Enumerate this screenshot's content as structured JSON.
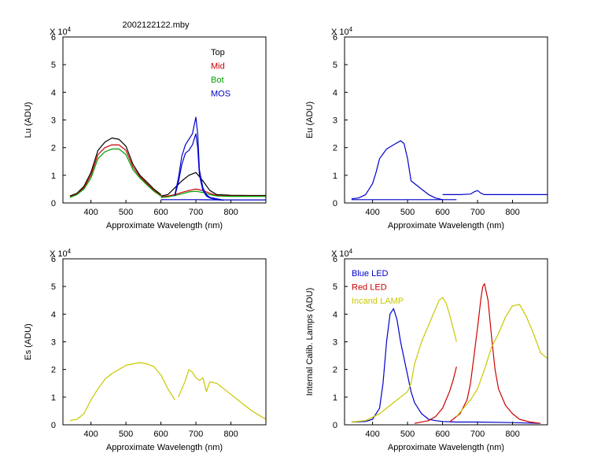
{
  "figure_title": "2002122122.mby",
  "chart_data": [
    {
      "id": "lu",
      "type": "line",
      "title": "2002122122.mby",
      "xlabel": "Approximate Wavelength (nm)",
      "ylabel": "Lu (ADU)",
      "y_multiplier": "X 10",
      "y_multiplier_exp": "4",
      "xlim": [
        320,
        900
      ],
      "ylim": [
        0,
        6
      ],
      "xticks": [
        400,
        500,
        600,
        700,
        800
      ],
      "yticks": [
        0,
        1,
        2,
        3,
        4,
        5,
        6
      ],
      "legend_position": "top-right",
      "series": [
        {
          "name": "Top",
          "color": "#000000",
          "in_legend": true,
          "x": [
            340,
            360,
            380,
            400,
            420,
            440,
            460,
            480,
            500,
            520,
            540,
            560,
            580,
            600
          ],
          "y": [
            0.25,
            0.35,
            0.6,
            1.1,
            1.9,
            2.2,
            2.35,
            2.3,
            2.05,
            1.4,
            1.0,
            0.75,
            0.5,
            0.3
          ]
        },
        {
          "name": "Top",
          "color": "#000000",
          "in_legend": false,
          "x": [
            600,
            620,
            640,
            660,
            680,
            700,
            720,
            740,
            760,
            800,
            850,
            900
          ],
          "y": [
            0.25,
            0.3,
            0.55,
            0.8,
            1.0,
            1.1,
            0.8,
            0.45,
            0.3,
            0.28,
            0.27,
            0.27
          ]
        },
        {
          "name": "Mid",
          "color": "#cc0000",
          "in_legend": true,
          "x": [
            340,
            360,
            380,
            400,
            420,
            440,
            460,
            480,
            500,
            520,
            540,
            560,
            580,
            600
          ],
          "y": [
            0.22,
            0.32,
            0.55,
            1.0,
            1.75,
            2.0,
            2.1,
            2.1,
            1.9,
            1.3,
            0.95,
            0.7,
            0.45,
            0.28
          ]
        },
        {
          "name": "Mid",
          "color": "#cc0000",
          "in_legend": false,
          "x": [
            600,
            620,
            640,
            660,
            680,
            700,
            720,
            740,
            760,
            800,
            850,
            900
          ],
          "y": [
            0.22,
            0.25,
            0.3,
            0.38,
            0.45,
            0.5,
            0.45,
            0.35,
            0.27,
            0.25,
            0.25,
            0.25
          ]
        },
        {
          "name": "Bot",
          "color": "#00a000",
          "in_legend": true,
          "x": [
            340,
            360,
            380,
            400,
            420,
            440,
            460,
            480,
            500,
            520,
            540,
            560,
            580,
            600
          ],
          "y": [
            0.2,
            0.3,
            0.5,
            0.9,
            1.6,
            1.85,
            1.95,
            1.95,
            1.75,
            1.2,
            0.9,
            0.65,
            0.42,
            0.25
          ]
        },
        {
          "name": "Bot",
          "color": "#00a000",
          "in_legend": false,
          "x": [
            600,
            620,
            640,
            660,
            680,
            700,
            720,
            740,
            760,
            800,
            850,
            900
          ],
          "y": [
            0.2,
            0.22,
            0.27,
            0.33,
            0.4,
            0.42,
            0.38,
            0.3,
            0.25,
            0.24,
            0.24,
            0.24
          ]
        },
        {
          "name": "MOS",
          "color": "#0000cc",
          "in_legend": true,
          "x": [
            640,
            650,
            660,
            670,
            680,
            690,
            695,
            700,
            705,
            710,
            720,
            730,
            740,
            760,
            780
          ],
          "y": [
            0.3,
            0.9,
            1.7,
            2.1,
            2.3,
            2.5,
            2.8,
            3.1,
            2.5,
            1.2,
            0.55,
            0.3,
            0.2,
            0.15,
            0.1
          ]
        },
        {
          "name": "MOS",
          "color": "#0000cc",
          "in_legend": false,
          "x": [
            640,
            650,
            660,
            670,
            680,
            690,
            695,
            700,
            705,
            710,
            720,
            730,
            740,
            760,
            780
          ],
          "y": [
            0.25,
            0.75,
            1.4,
            1.8,
            1.9,
            2.1,
            2.3,
            2.5,
            2.0,
            1.0,
            0.45,
            0.25,
            0.18,
            0.12,
            0.1
          ]
        },
        {
          "name": "MOS",
          "color": "#0000cc",
          "in_legend": false,
          "x": [
            600,
            700,
            780,
            900
          ],
          "y": [
            0.12,
            0.12,
            0.11,
            0.11
          ]
        }
      ]
    },
    {
      "id": "eu",
      "type": "line",
      "title": "",
      "xlabel": "Approximate Wavelength (nm)",
      "ylabel": "Eu  (ADU)",
      "y_multiplier": "X 10",
      "y_multiplier_exp": "4",
      "xlim": [
        320,
        900
      ],
      "ylim": [
        0,
        6
      ],
      "xticks": [
        400,
        500,
        600,
        700,
        800
      ],
      "yticks": [
        0,
        1,
        2,
        3,
        4,
        5,
        6
      ],
      "series": [
        {
          "name": "Eu",
          "color": "#0000cc",
          "x": [
            340,
            360,
            380,
            400,
            410,
            420,
            440,
            460,
            480,
            490,
            500,
            510,
            520,
            540,
            560,
            580,
            600
          ],
          "y": [
            0.15,
            0.18,
            0.3,
            0.7,
            1.1,
            1.6,
            1.95,
            2.1,
            2.25,
            2.15,
            1.6,
            0.8,
            0.7,
            0.5,
            0.3,
            0.18,
            0.12
          ]
        },
        {
          "name": "Eu",
          "color": "#0000cc",
          "x": [
            340,
            640
          ],
          "y": [
            0.12,
            0.12
          ]
        },
        {
          "name": "Eu",
          "color": "#0000cc",
          "x": [
            600,
            650,
            680,
            690,
            700,
            710,
            720,
            760,
            800,
            900
          ],
          "y": [
            0.3,
            0.3,
            0.32,
            0.4,
            0.45,
            0.35,
            0.3,
            0.3,
            0.3,
            0.3
          ]
        }
      ]
    },
    {
      "id": "es",
      "type": "line",
      "title": "",
      "xlabel": "Approximate Wavelength (nm)",
      "ylabel": "Es  (ADU)",
      "y_multiplier": "X 10",
      "y_multiplier_exp": "4",
      "xlim": [
        320,
        900
      ],
      "ylim": [
        0,
        6
      ],
      "xticks": [
        400,
        500,
        600,
        700,
        800
      ],
      "yticks": [
        0,
        1,
        2,
        3,
        4,
        5,
        6
      ],
      "series": [
        {
          "name": "Es",
          "color": "#c8c800",
          "x": [
            340,
            360,
            380,
            400,
            420,
            440,
            460,
            480,
            500,
            520,
            540,
            560,
            580,
            600,
            620,
            640
          ],
          "y": [
            0.15,
            0.2,
            0.4,
            0.9,
            1.3,
            1.65,
            1.85,
            2.0,
            2.15,
            2.2,
            2.25,
            2.2,
            2.1,
            1.8,
            1.3,
            0.9
          ]
        },
        {
          "name": "Es",
          "color": "#c8c800",
          "x": [
            650,
            670,
            680,
            690,
            700,
            710,
            720,
            730,
            740,
            760,
            780,
            800,
            820,
            840,
            860,
            880,
            900
          ],
          "y": [
            1.0,
            1.6,
            2.0,
            1.9,
            1.7,
            1.6,
            1.7,
            1.2,
            1.55,
            1.5,
            1.3,
            1.1,
            0.9,
            0.7,
            0.5,
            0.35,
            0.2
          ]
        }
      ]
    },
    {
      "id": "lamps",
      "type": "line",
      "title": "",
      "xlabel": "Approximate Wavelength (nm)",
      "ylabel": "Internal Calib. Lamps (ADU)",
      "y_multiplier": "X 10",
      "y_multiplier_exp": "4",
      "xlim": [
        320,
        900
      ],
      "ylim": [
        0,
        6
      ],
      "xticks": [
        400,
        500,
        600,
        700,
        800
      ],
      "yticks": [
        0,
        1,
        2,
        3,
        4,
        5,
        6
      ],
      "legend_position": "top-left",
      "series": [
        {
          "name": "Blue LED",
          "color": "#0000cc",
          "in_legend": true,
          "x": [
            340,
            380,
            400,
            420,
            430,
            440,
            450,
            460,
            470,
            480,
            490,
            500,
            510,
            520,
            540,
            560,
            580,
            600,
            640,
            700,
            800,
            880
          ],
          "y": [
            0.1,
            0.12,
            0.2,
            0.6,
            1.5,
            3.0,
            4.0,
            4.2,
            3.8,
            3.0,
            2.4,
            1.8,
            1.2,
            0.8,
            0.4,
            0.2,
            0.15,
            0.12,
            0.1,
            0.1,
            0.08,
            0.05
          ]
        },
        {
          "name": "Red LED",
          "color": "#cc0000",
          "in_legend": true,
          "x": [
            520,
            560,
            580,
            600,
            620,
            630,
            640
          ],
          "y": [
            0.05,
            0.15,
            0.3,
            0.6,
            1.2,
            1.6,
            2.1
          ]
        },
        {
          "name": "Red LED",
          "color": "#cc0000",
          "in_legend": false,
          "x": [
            620,
            650,
            670,
            680,
            690,
            700,
            710,
            715,
            720,
            730,
            740,
            750,
            760,
            780,
            800,
            820,
            850,
            880
          ],
          "y": [
            0.1,
            0.4,
            0.9,
            1.5,
            2.5,
            3.5,
            4.6,
            5.0,
            5.1,
            4.5,
            3.2,
            2.0,
            1.3,
            0.7,
            0.4,
            0.2,
            0.1,
            0.05
          ]
        },
        {
          "name": "Incand LAMP",
          "color": "#c8c800",
          "in_legend": true,
          "x": [
            340,
            380,
            420,
            460,
            480,
            500,
            510,
            520,
            540,
            560,
            580,
            590,
            600,
            610,
            620,
            630,
            640
          ],
          "y": [
            0.1,
            0.15,
            0.4,
            0.8,
            1.0,
            1.2,
            1.5,
            2.2,
            3.0,
            3.6,
            4.2,
            4.5,
            4.6,
            4.4,
            4.0,
            3.5,
            3.0
          ]
        },
        {
          "name": "Incand LAMP",
          "color": "#c8c800",
          "in_legend": false,
          "x": [
            640,
            660,
            680,
            700,
            720,
            740,
            760,
            780,
            800,
            820,
            840,
            860,
            880,
            900
          ],
          "y": [
            0.3,
            0.6,
            0.9,
            1.3,
            2.0,
            2.8,
            3.3,
            3.9,
            4.3,
            4.35,
            3.9,
            3.3,
            2.6,
            2.4
          ]
        }
      ]
    }
  ]
}
